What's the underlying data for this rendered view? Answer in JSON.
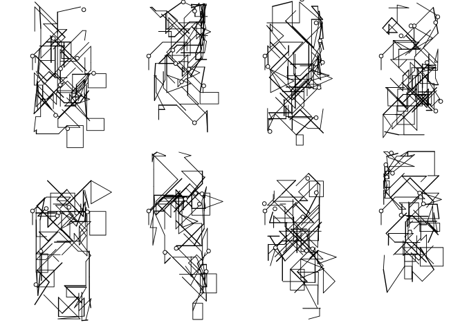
{
  "colors": {
    "background": "#ffffff",
    "stroke": "#000000"
  },
  "figures": [
    {
      "name": "figure-1"
    },
    {
      "name": "figure-2"
    },
    {
      "name": "figure-3"
    },
    {
      "name": "figure-4"
    },
    {
      "name": "figure-5"
    },
    {
      "name": "figure-6"
    },
    {
      "name": "figure-7"
    },
    {
      "name": "figure-8"
    }
  ]
}
